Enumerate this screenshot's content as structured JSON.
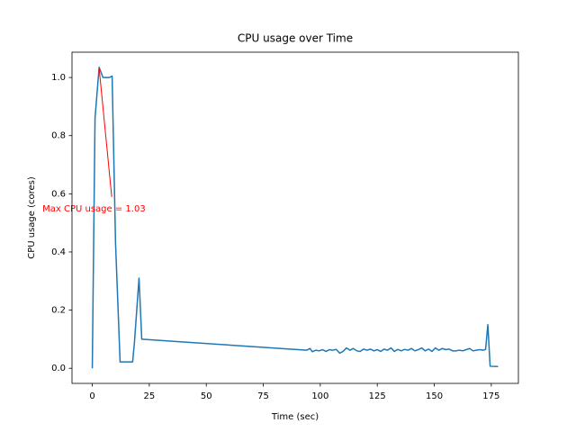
{
  "chart_data": {
    "type": "line",
    "title": "CPU usage over Time",
    "x_label": "Time (sec)",
    "y_label": "CPU usage (cores)",
    "x": [
      0,
      1.2,
      3,
      4.7,
      6.3,
      7.5,
      8.7,
      10.2,
      12.2,
      17.7,
      18.5,
      20.5,
      21.7,
      94,
      95.5,
      96.5,
      98,
      99.5,
      101,
      102.5,
      104,
      105.5,
      107,
      108.5,
      110,
      111.5,
      113,
      114.5,
      116,
      117.5,
      119,
      120.5,
      122,
      123.5,
      125,
      126.5,
      128,
      129.5,
      131,
      132.5,
      134,
      135.5,
      137,
      138.5,
      140,
      141.5,
      143,
      144.5,
      146,
      147.5,
      149,
      150.5,
      152,
      153.5,
      155,
      156.5,
      158,
      159.5,
      161,
      162.5,
      164,
      165.5,
      167,
      168.5,
      170,
      171.5,
      172.5,
      173.5,
      174.5,
      178
    ],
    "series": [
      {
        "name": "CPU usage",
        "color": "#1f77b4",
        "values": [
          0,
          0.86,
          1.035,
          1.0,
          1.0,
          1.0,
          1.005,
          0.43,
          0.022,
          0.022,
          0.09,
          0.31,
          0.1,
          0.062,
          0.068,
          0.057,
          0.062,
          0.06,
          0.064,
          0.058,
          0.064,
          0.062,
          0.065,
          0.052,
          0.058,
          0.07,
          0.062,
          0.068,
          0.06,
          0.058,
          0.066,
          0.062,
          0.066,
          0.06,
          0.064,
          0.058,
          0.066,
          0.062,
          0.07,
          0.058,
          0.065,
          0.06,
          0.065,
          0.062,
          0.068,
          0.06,
          0.064,
          0.07,
          0.06,
          0.066,
          0.058,
          0.07,
          0.062,
          0.068,
          0.064,
          0.066,
          0.06,
          0.06,
          0.062,
          0.06,
          0.064,
          0.068,
          0.06,
          0.062,
          0.064,
          0.062,
          0.065,
          0.15,
          0.007,
          0.006
        ]
      }
    ],
    "annotation": {
      "text": "Max CPU usage = 1.03",
      "x": 3,
      "y": 1.035,
      "color": "#ff0000"
    },
    "xlim": [
      -8.9,
      186.9
    ],
    "ylim": [
      -0.052,
      1.087
    ],
    "xticks": [
      0,
      25,
      50,
      75,
      100,
      125,
      150,
      175
    ],
    "yticks": [
      {
        "value": 0,
        "label": "0.0"
      },
      {
        "value": 0.2,
        "label": "0.2"
      },
      {
        "value": 0.4,
        "label": "0.4"
      },
      {
        "value": 0.6,
        "label": "0.6"
      },
      {
        "value": 0.8,
        "label": "0.8"
      },
      {
        "value": 1,
        "label": "1.0"
      }
    ],
    "grid": false
  }
}
